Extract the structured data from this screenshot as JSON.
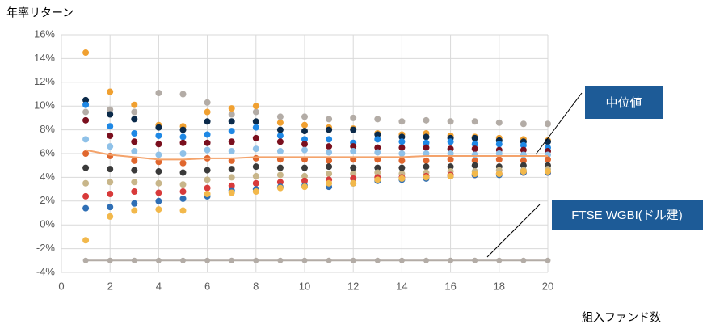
{
  "chart_data": {
    "type": "scatter",
    "y_label": "年率リターン",
    "x_label": "組入ファンド数",
    "x": [
      1,
      2,
      3,
      4,
      5,
      6,
      7,
      8,
      9,
      10,
      11,
      12,
      13,
      14,
      15,
      16,
      17,
      18,
      19,
      20
    ],
    "xlim": [
      0,
      20
    ],
    "xticks": [
      0,
      2,
      4,
      6,
      8,
      10,
      12,
      14,
      16,
      18,
      20
    ],
    "ylim": [
      -4,
      16
    ],
    "yticks": [
      {
        "value": -4,
        "label": "-4%"
      },
      {
        "value": -2,
        "label": "-2%"
      },
      {
        "value": 0,
        "label": "0%"
      },
      {
        "value": 2,
        "label": "2%"
      },
      {
        "value": 4,
        "label": "4%"
      },
      {
        "value": 6,
        "label": "6%"
      },
      {
        "value": 8,
        "label": "8%"
      },
      {
        "value": 10,
        "label": "10%"
      },
      {
        "value": 12,
        "label": "12%"
      },
      {
        "value": 14,
        "label": "14%"
      },
      {
        "value": 16,
        "label": "16%"
      }
    ],
    "grid": true,
    "series": [
      {
        "color": "#b3aca6",
        "values": [
          9.5,
          9.7,
          9.5,
          11.1,
          11.0,
          10.3,
          9.3,
          9.5,
          9.1,
          9.1,
          8.9,
          9.0,
          8.9,
          8.7,
          8.8,
          8.7,
          8.7,
          8.6,
          8.5,
          8.5
        ]
      },
      {
        "color": "#f0a030",
        "values": [
          14.5,
          11.2,
          10.1,
          8.4,
          8.3,
          9.5,
          9.8,
          10.0,
          8.6,
          8.4,
          8.2,
          8.1,
          7.7,
          7.6,
          7.7,
          7.5,
          7.4,
          7.3,
          7.2,
          7.1
        ]
      },
      {
        "color": "#0b2a4a",
        "values": [
          10.5,
          9.3,
          8.9,
          8.2,
          8.0,
          8.7,
          8.7,
          8.7,
          8.0,
          7.9,
          8.0,
          8.0,
          7.6,
          7.4,
          7.4,
          7.3,
          7.3,
          7.1,
          7.0,
          7.0
        ]
      },
      {
        "color": "#1e88e5",
        "values": [
          10.1,
          8.3,
          7.7,
          7.5,
          7.4,
          7.6,
          7.9,
          8.2,
          7.5,
          7.2,
          7.2,
          6.9,
          7.2,
          7.0,
          6.9,
          7.0,
          6.8,
          6.8,
          6.7,
          6.5
        ]
      },
      {
        "color": "#7a0f1e",
        "values": [
          8.8,
          7.5,
          7.0,
          6.8,
          6.9,
          6.9,
          7.0,
          7.3,
          7.0,
          6.8,
          6.6,
          6.6,
          6.5,
          6.5,
          6.5,
          6.4,
          6.4,
          6.3,
          6.3,
          6.2
        ]
      },
      {
        "color": "#8fc1e8",
        "values": [
          7.2,
          6.6,
          6.2,
          5.9,
          6.0,
          6.3,
          6.2,
          6.4,
          6.2,
          6.3,
          6.1,
          6.2,
          6.1,
          6.0,
          6.0,
          6.0,
          5.9,
          6.0,
          5.9,
          5.9
        ]
      },
      {
        "color": "#e0672e",
        "values": [
          6.0,
          5.8,
          5.4,
          5.3,
          5.2,
          5.6,
          5.4,
          5.6,
          5.5,
          5.5,
          5.4,
          5.5,
          5.5,
          5.4,
          5.4,
          5.5,
          5.4,
          5.5,
          5.4,
          5.5
        ]
      },
      {
        "color": "#3a3a3a",
        "values": [
          4.8,
          4.7,
          4.6,
          4.5,
          4.4,
          4.6,
          4.7,
          4.9,
          4.8,
          4.8,
          4.9,
          4.8,
          4.8,
          4.8,
          4.9,
          4.9,
          5.0,
          4.9,
          5.0,
          5.0
        ]
      },
      {
        "color": "#c8b68a",
        "values": [
          3.5,
          3.6,
          3.6,
          3.5,
          3.4,
          3.8,
          4.0,
          4.1,
          4.2,
          4.1,
          4.3,
          4.3,
          4.4,
          4.3,
          4.4,
          4.5,
          4.5,
          4.6,
          4.6,
          4.7
        ]
      },
      {
        "color": "#d83a3a",
        "values": [
          2.4,
          2.6,
          2.8,
          2.7,
          2.8,
          3.1,
          3.3,
          3.5,
          3.6,
          3.7,
          3.8,
          3.9,
          4.0,
          4.0,
          4.1,
          4.2,
          4.2,
          4.3,
          4.4,
          4.4
        ]
      },
      {
        "color": "#2f6fb5",
        "values": [
          1.4,
          1.5,
          1.8,
          2.0,
          2.2,
          2.4,
          2.9,
          3.0,
          3.2,
          3.3,
          3.2,
          3.5,
          3.7,
          3.8,
          3.9,
          4.1,
          4.2,
          4.2,
          4.4,
          4.4
        ]
      },
      {
        "color": "#f2b84b",
        "values": [
          -1.3,
          0.7,
          1.2,
          1.3,
          1.2,
          2.6,
          2.7,
          2.8,
          3.1,
          3.2,
          3.5,
          3.5,
          3.8,
          3.9,
          4.0,
          4.1,
          4.3,
          4.3,
          4.5,
          4.5
        ]
      },
      {
        "name": "中位値",
        "mode": "line",
        "color": "#f4a36b",
        "values": [
          6.3,
          5.9,
          5.7,
          5.5,
          5.5,
          5.6,
          5.6,
          5.7,
          5.7,
          5.7,
          5.7,
          5.7,
          5.7,
          5.7,
          5.8,
          5.8,
          5.8,
          5.8,
          5.8,
          5.8
        ]
      },
      {
        "name": "FTSE WGBI(ドル建)",
        "mode": "line",
        "markers": true,
        "color": "#b3aca6",
        "values": [
          -3,
          -3,
          -3,
          -3,
          -3,
          -3,
          -3,
          -3,
          -3,
          -3,
          -3,
          -3,
          -3,
          -3,
          -3,
          -3,
          -3,
          -3,
          -3,
          -3
        ]
      }
    ]
  }
}
